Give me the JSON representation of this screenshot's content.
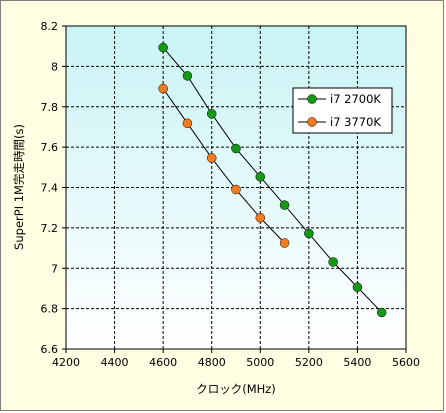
{
  "chart_data": {
    "type": "line",
    "xlabel": "クロック(MHz)",
    "ylabel": "SuperPI 1M完走時間(s)",
    "xlim": [
      4200,
      5600
    ],
    "ylim": [
      6.6,
      8.2
    ],
    "x_ticks": [
      "4200",
      "4400",
      "4600",
      "4800",
      "5000",
      "5200",
      "5400",
      "5600"
    ],
    "y_ticks": [
      "6.6",
      "6.8",
      "7",
      "7.2",
      "7.4",
      "7.6",
      "7.8",
      "8",
      "8.2"
    ],
    "grid": true,
    "legend_position": "right",
    "series": [
      {
        "name": "i7 2700K",
        "color": "#139a12",
        "x": [
          4600,
          4700,
          4800,
          4900,
          5000,
          5100,
          5200,
          5300,
          5400,
          5500
        ],
        "y": [
          8.093,
          7.953,
          7.765,
          7.593,
          7.453,
          7.313,
          7.172,
          7.031,
          6.906,
          6.781
        ]
      },
      {
        "name": "i7 3770K",
        "color": "#f57b1c",
        "x": [
          4600,
          4700,
          4800,
          4900,
          5000,
          5100
        ],
        "y": [
          7.89,
          7.718,
          7.546,
          7.39,
          7.25,
          7.125
        ]
      }
    ]
  }
}
